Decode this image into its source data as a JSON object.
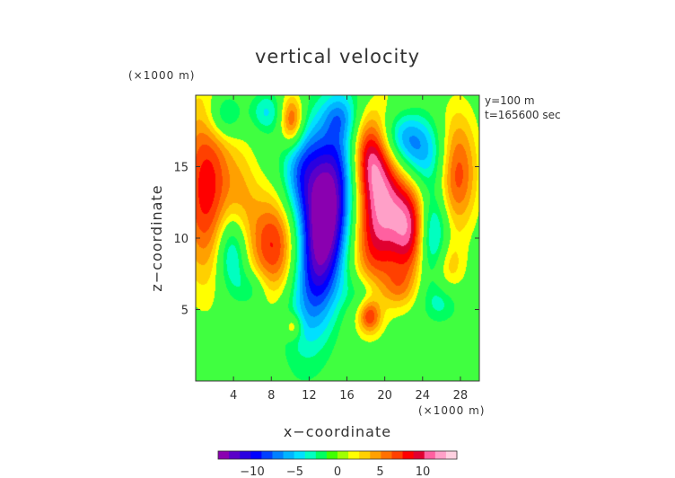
{
  "chart_data": {
    "type": "heatmap",
    "title": "vertical velocity",
    "xlabel": "x−coordinate",
    "ylabel": "z−coordinate",
    "x_unit": "(×1000 m)",
    "y_unit": "(×1000 m)",
    "xlim": [
      0,
      30
    ],
    "ylim": [
      0,
      20
    ],
    "x_ticks": [
      "4",
      "8",
      "12",
      "16",
      "20",
      "24",
      "28"
    ],
    "x_tick_values": [
      4,
      8,
      12,
      16,
      20,
      24,
      28
    ],
    "y_ticks": [
      "5",
      "10",
      "15"
    ],
    "y_tick_values": [
      5,
      10,
      15
    ],
    "annotations": [
      "y=100 m",
      "t=165600 sec"
    ],
    "colorbar": {
      "ticks": [
        "−10",
        "−5",
        "0",
        "5",
        "10"
      ],
      "tick_values": [
        -10,
        -5,
        0,
        5,
        10
      ],
      "range": [
        -14,
        14
      ],
      "colors": [
        "#8a00b0",
        "#5a00c8",
        "#2a00e0",
        "#0000ff",
        "#0040ff",
        "#0080ff",
        "#00b4ff",
        "#00e0ff",
        "#00ffc0",
        "#00ff60",
        "#40ff00",
        "#a0ff00",
        "#ffff00",
        "#ffd000",
        "#ffa000",
        "#ff7000",
        "#ff4000",
        "#ff0000",
        "#e00030",
        "#ff60a0",
        "#ffa0c8",
        "#ffd0e0"
      ]
    },
    "features": [
      {
        "x": 13.6,
        "y": 11.0,
        "amp": -16,
        "sx": 2.0,
        "sy": 5.0,
        "rot": 0.22
      },
      {
        "x": 11.0,
        "y": 14.8,
        "amp": -6,
        "sx": 1.5,
        "sy": 2.5,
        "rot": 0.1
      },
      {
        "x": 19.6,
        "y": 12.2,
        "amp": 11.5,
        "sx": 2.0,
        "sy": 4.2,
        "rot": 0.2
      },
      {
        "x": 18.3,
        "y": 16.0,
        "amp": 8,
        "sx": 1.4,
        "sy": 2.0,
        "rot": 0
      },
      {
        "x": 8.5,
        "y": 9.5,
        "amp": 8.5,
        "sx": 2.1,
        "sy": 2.6,
        "rot": 0
      },
      {
        "x": 1.2,
        "y": 13.5,
        "amp": 8.5,
        "sx": 2.0,
        "sy": 4.5,
        "rot": 0
      },
      {
        "x": 3.8,
        "y": 9.0,
        "amp": -6.5,
        "sx": 1.2,
        "sy": 2.0,
        "rot": 0
      },
      {
        "x": 5.0,
        "y": 13.0,
        "amp": 2.5,
        "sx": 1.2,
        "sy": 2.5,
        "rot": 0
      },
      {
        "x": 22.8,
        "y": 10.5,
        "amp": 9,
        "sx": 1.4,
        "sy": 2.4,
        "rot": 0
      },
      {
        "x": 25.0,
        "y": 10.0,
        "amp": -7.5,
        "sx": 1.2,
        "sy": 2.3,
        "rot": 0
      },
      {
        "x": 23.5,
        "y": 15.8,
        "amp": -6.5,
        "sx": 2.5,
        "sy": 1.8,
        "rot": 0
      },
      {
        "x": 21.5,
        "y": 17.2,
        "amp": -6,
        "sx": 1.8,
        "sy": 1.4,
        "rot": 0
      },
      {
        "x": 27.6,
        "y": 14.8,
        "amp": 8,
        "sx": 1.5,
        "sy": 2.8,
        "rot": 0
      },
      {
        "x": 26.5,
        "y": 8.0,
        "amp": 4,
        "sx": 1.3,
        "sy": 1.5,
        "rot": 0
      },
      {
        "x": 10.2,
        "y": 18.2,
        "amp": 8,
        "sx": 0.9,
        "sy": 1.3,
        "rot": 0
      },
      {
        "x": 3.0,
        "y": 18.6,
        "amp": -5,
        "sx": 1.3,
        "sy": 1.2,
        "rot": 0
      },
      {
        "x": 7.5,
        "y": 18.8,
        "amp": -4,
        "sx": 1.2,
        "sy": 1.0,
        "rot": 0
      },
      {
        "x": 15.2,
        "y": 18.5,
        "amp": -3,
        "sx": 1.2,
        "sy": 1.0,
        "rot": 0
      },
      {
        "x": 6.0,
        "y": 6.5,
        "amp": -3,
        "sx": 1.2,
        "sy": 1.0,
        "rot": 0
      },
      {
        "x": 18.4,
        "y": 4.5,
        "amp": 6,
        "sx": 0.8,
        "sy": 0.8,
        "rot": 0
      },
      {
        "x": 10.3,
        "y": 3.8,
        "amp": 4.5,
        "sx": 0.6,
        "sy": 0.6,
        "rot": 0
      },
      {
        "x": 17.5,
        "y": 6.2,
        "amp": -3,
        "sx": 1.4,
        "sy": 1.0,
        "rot": 0
      },
      {
        "x": 26.0,
        "y": 5.5,
        "amp": -3,
        "sx": 1.4,
        "sy": 1.0,
        "rot": 0
      },
      {
        "x": 21.5,
        "y": 6.5,
        "amp": 3,
        "sx": 1.2,
        "sy": 1.0,
        "rot": 0
      }
    ]
  }
}
